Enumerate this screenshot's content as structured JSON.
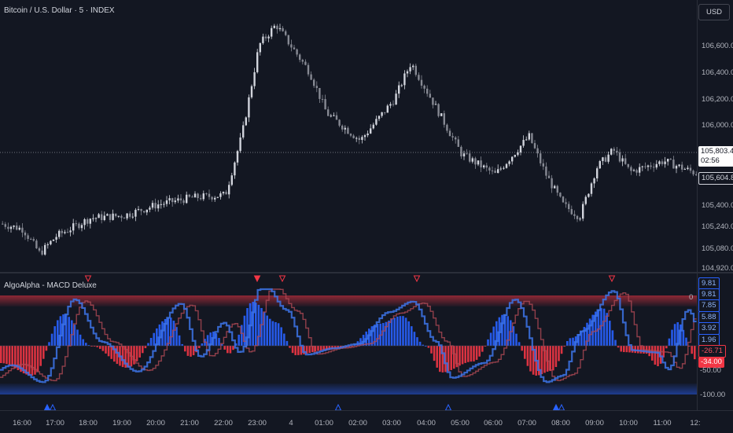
{
  "header": {
    "symbol_title": "Bitcoin / U.S. Dollar · 5 · INDEX",
    "currency_button": "USD"
  },
  "price_axis": {
    "ticks": [
      "106,600.00",
      "106,400.00",
      "106,200.00",
      "106,000.00",
      "105,400.00",
      "105,240.00",
      "105,080.00",
      "104,920.00"
    ],
    "last_price": "105,803.40",
    "countdown": "02:56",
    "marker_price": "105,604.88"
  },
  "indicator": {
    "title": "AlgoAlpha - MACD Deluxe",
    "axis_labels": [
      "9.81",
      "9.81",
      "7.85",
      "5.88",
      "3.92",
      "1.96",
      "-26.71",
      "-34.00",
      "-50.00",
      "-100.00"
    ],
    "zero_label": "0"
  },
  "time_axis": {
    "ticks": [
      "16:00",
      "17:00",
      "18:00",
      "19:00",
      "20:00",
      "21:00",
      "22:00",
      "23:00",
      "4",
      "01:00",
      "02:00",
      "03:00",
      "04:00",
      "05:00",
      "06:00",
      "07:00",
      "08:00",
      "09:00",
      "10:00",
      "11:00",
      "12:"
    ]
  },
  "colors": {
    "background": "#131722",
    "bull": "#2962ff",
    "bear": "#f23645",
    "candle": "#b2b5be",
    "grid": "#2a2e39"
  },
  "chart_data": {
    "type": "candlestick",
    "xlabel": "",
    "ylabel": "",
    "ylim": [
      104920,
      106800
    ],
    "approx_close_path": [
      {
        "x": "15:30",
        "y": 105230
      },
      {
        "x": "16:00",
        "y": 105200
      },
      {
        "x": "16:30",
        "y": 105020
      },
      {
        "x": "17:00",
        "y": 105150
      },
      {
        "x": "18:00",
        "y": 105280
      },
      {
        "x": "19:00",
        "y": 105300
      },
      {
        "x": "20:00",
        "y": 105380
      },
      {
        "x": "21:00",
        "y": 105430
      },
      {
        "x": "22:00",
        "y": 105450
      },
      {
        "x": "22:30",
        "y": 105900
      },
      {
        "x": "23:00",
        "y": 106550
      },
      {
        "x": "23:30",
        "y": 106700
      },
      {
        "x": "00:30",
        "y": 106350
      },
      {
        "x": "01:00",
        "y": 106050
      },
      {
        "x": "02:00",
        "y": 105850
      },
      {
        "x": "03:00",
        "y": 106150
      },
      {
        "x": "03:30",
        "y": 106420
      },
      {
        "x": "04:00",
        "y": 106200
      },
      {
        "x": "05:00",
        "y": 105750
      },
      {
        "x": "06:00",
        "y": 105600
      },
      {
        "x": "07:00",
        "y": 105880
      },
      {
        "x": "07:30",
        "y": 105600
      },
      {
        "x": "08:00",
        "y": 105380
      },
      {
        "x": "08:30",
        "y": 105290
      },
      {
        "x": "09:00",
        "y": 105650
      },
      {
        "x": "09:30",
        "y": 105780
      },
      {
        "x": "10:00",
        "y": 105620
      },
      {
        "x": "11:00",
        "y": 105700
      },
      {
        "x": "12:00",
        "y": 105604.88
      }
    ]
  }
}
